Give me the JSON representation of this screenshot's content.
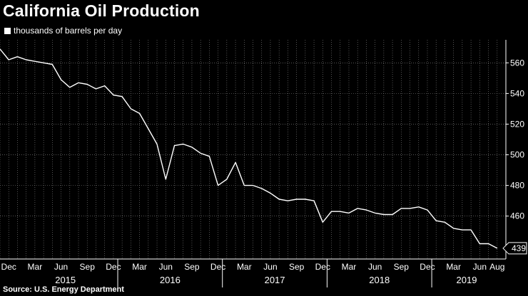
{
  "title": "California Oil Production",
  "legend_label": "thousands of barrels per day",
  "source": "Source: U.S. Energy Department",
  "colors": {
    "background": "#000000",
    "line": "#ffffff",
    "grid": "#8a8a8a"
  },
  "chart_data": {
    "type": "line",
    "title": "California Oil Production",
    "series": [
      {
        "name": "thousands of barrels per day",
        "x": [
          "2014-11",
          "2014-12",
          "2015-01",
          "2015-02",
          "2015-03",
          "2015-04",
          "2015-05",
          "2015-06",
          "2015-07",
          "2015-08",
          "2015-09",
          "2015-10",
          "2015-11",
          "2015-12",
          "2016-01",
          "2016-02",
          "2016-03",
          "2016-04",
          "2016-05",
          "2016-06",
          "2016-07",
          "2016-08",
          "2016-09",
          "2016-10",
          "2016-11",
          "2016-12",
          "2017-01",
          "2017-02",
          "2017-03",
          "2017-04",
          "2017-05",
          "2017-06",
          "2017-07",
          "2017-08",
          "2017-09",
          "2017-10",
          "2017-11",
          "2017-12",
          "2018-01",
          "2018-02",
          "2018-03",
          "2018-04",
          "2018-05",
          "2018-06",
          "2018-07",
          "2018-08",
          "2018-09",
          "2018-10",
          "2018-11",
          "2018-12",
          "2019-01",
          "2019-02",
          "2019-03",
          "2019-04",
          "2019-05",
          "2019-06",
          "2019-07",
          "2019-08"
        ],
        "values": [
          569,
          562,
          564,
          562,
          561,
          560,
          559,
          549,
          544,
          547,
          546,
          543,
          545,
          539,
          538,
          530,
          527,
          517,
          507,
          484,
          506,
          507,
          505,
          501,
          499,
          480,
          484,
          495,
          480,
          480,
          478,
          475,
          471,
          470,
          471,
          471,
          470,
          456,
          463,
          463,
          462,
          465,
          464,
          462,
          461,
          461,
          465,
          465,
          466,
          464,
          457,
          456,
          452,
          451,
          451,
          442,
          442,
          439
        ]
      }
    ],
    "x_month_labels": [
      "Dec",
      "Mar",
      "Jun",
      "Sep",
      "Dec",
      "Mar",
      "Jun",
      "Sep",
      "Dec",
      "Mar",
      "Jun",
      "Sep",
      "Dec",
      "Mar",
      "Jun",
      "Sep",
      "Dec",
      "Mar",
      "Jun",
      "Aug"
    ],
    "x_month_label_dates": [
      "2014-12",
      "2015-03",
      "2015-06",
      "2015-09",
      "2015-12",
      "2016-03",
      "2016-06",
      "2016-09",
      "2016-12",
      "2017-03",
      "2017-06",
      "2017-09",
      "2017-12",
      "2018-03",
      "2018-06",
      "2018-09",
      "2018-12",
      "2019-03",
      "2019-06",
      "2019-08"
    ],
    "year_labels": [
      {
        "label": "2015",
        "start": "2015-01",
        "end": "2015-12"
      },
      {
        "label": "2016",
        "start": "2016-01",
        "end": "2016-12"
      },
      {
        "label": "2017",
        "start": "2017-01",
        "end": "2017-12"
      },
      {
        "label": "2018",
        "start": "2018-01",
        "end": "2018-12"
      },
      {
        "label": "2019",
        "start": "2019-01",
        "end": "2019-08"
      }
    ],
    "y_ticks": [
      460,
      480,
      500,
      520,
      540,
      560
    ],
    "last_value_label": "439",
    "last_value": 439,
    "ylim": [
      432,
      575
    ],
    "xlim": [
      "2014-11",
      "2019-09"
    ],
    "y_axis_position": "right",
    "grid": true
  }
}
